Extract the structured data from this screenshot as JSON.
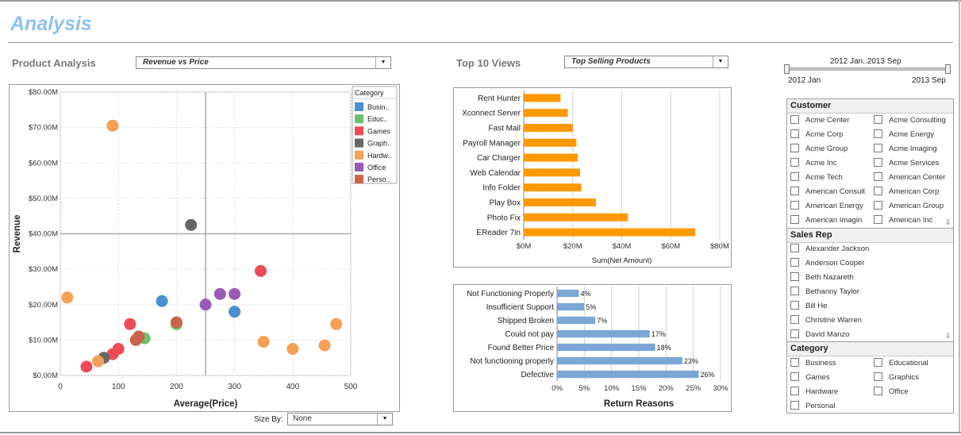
{
  "page_title": "Analysis",
  "product_analysis": {
    "title": "Product Analysis",
    "combo_value": "Revenue vs Price",
    "size_by_label": "Size By:",
    "size_by_value": "None"
  },
  "top10": {
    "title": "Top 10 Views",
    "combo_value": "Top Selling Products"
  },
  "slider": {
    "range_label": "2012 Jan..2013 Sep",
    "min_label": "2012 Jan",
    "max_label": "2013 Sep"
  },
  "filters": {
    "customer": {
      "title": "Customer",
      "items": [
        "Acme Center",
        "Acme Consulting",
        "Acme Corp",
        "Acme Energy",
        "Acme Group",
        "Acme Imaging",
        "Acme Inc",
        "Acme Services",
        "Acme Tech",
        "American Center",
        "American Consult",
        "American Corp",
        "American Energy",
        "American Group",
        "American Imagin",
        "American Inc"
      ]
    },
    "sales_rep": {
      "title": "Sales Rep",
      "items": [
        "Alexander Jackson",
        "Anderson Cooper",
        "Beth Nazareth",
        "Bethanny Taylor",
        "Bill He",
        "Christine Warren",
        "David Manzo"
      ]
    },
    "category": {
      "title": "Category",
      "items": [
        "Business",
        "Educational",
        "Games",
        "Graphics",
        "Hardware",
        "Office",
        "Personal"
      ]
    }
  },
  "chart_data": [
    {
      "type": "scatter",
      "title": "",
      "xlabel": "Average(Price)",
      "ylabel": "Revenue",
      "xlim": [
        0,
        500
      ],
      "ylim": [
        0,
        80
      ],
      "x_ticks": [
        "0",
        "100",
        "200",
        "300",
        "400",
        "500"
      ],
      "y_ticks": [
        "$0.00M",
        "$10.00M",
        "$20.00M",
        "$30.00M",
        "$40.00M",
        "$50.00M",
        "$60.00M",
        "$70.00M",
        "$80.00M"
      ],
      "legend_title": "Category",
      "legend": [
        {
          "name": "Busin..",
          "color": "#4a8fd0"
        },
        {
          "name": "Educ..",
          "color": "#6cc06c"
        },
        {
          "name": "Games",
          "color": "#ee4b57"
        },
        {
          "name": "Graph..",
          "color": "#666666"
        },
        {
          "name": "Hardw..",
          "color": "#f5a055"
        },
        {
          "name": "Office",
          "color": "#9a5bb8"
        },
        {
          "name": "Perso..",
          "color": "#c9654b"
        }
      ],
      "points": [
        {
          "x": 90,
          "y": 70.5,
          "c": 4
        },
        {
          "x": 225,
          "y": 42.5,
          "c": 3
        },
        {
          "x": 12,
          "y": 22,
          "c": 4
        },
        {
          "x": 345,
          "y": 29.5,
          "c": 2
        },
        {
          "x": 175,
          "y": 21,
          "c": 0
        },
        {
          "x": 250,
          "y": 20,
          "c": 5
        },
        {
          "x": 275,
          "y": 23,
          "c": 5
        },
        {
          "x": 300,
          "y": 23,
          "c": 5
        },
        {
          "x": 300,
          "y": 18,
          "c": 0
        },
        {
          "x": 475,
          "y": 14.5,
          "c": 4
        },
        {
          "x": 350,
          "y": 9.5,
          "c": 4
        },
        {
          "x": 400,
          "y": 7.5,
          "c": 4
        },
        {
          "x": 455,
          "y": 8.5,
          "c": 4
        },
        {
          "x": 120,
          "y": 14.5,
          "c": 2
        },
        {
          "x": 200,
          "y": 14.5,
          "c": 1
        },
        {
          "x": 200,
          "y": 15,
          "c": 6
        },
        {
          "x": 145,
          "y": 10.5,
          "c": 1
        },
        {
          "x": 130,
          "y": 10,
          "c": 6
        },
        {
          "x": 100,
          "y": 7.5,
          "c": 2
        },
        {
          "x": 90,
          "y": 6,
          "c": 2
        },
        {
          "x": 75,
          "y": 5,
          "c": 3
        },
        {
          "x": 65,
          "y": 4,
          "c": 4
        },
        {
          "x": 45,
          "y": 2.5,
          "c": 2
        },
        {
          "x": 135,
          "y": 11,
          "c": 6
        }
      ]
    },
    {
      "type": "bar",
      "orientation": "horizontal",
      "title": "",
      "xlabel": "Sum(Net Amount)",
      "categories": [
        "Rent Hunter",
        "Xconnect Server",
        "Fast Mail",
        "Payroll Manager",
        "Car Charger",
        "Web Calendar",
        "Info Folder",
        "Play Box",
        "Photo Fix",
        "EReader 7in"
      ],
      "values": [
        15,
        18,
        20,
        21.5,
        22,
        23,
        23.5,
        29.5,
        42.5,
        70
      ],
      "xlim": [
        0,
        80
      ],
      "x_ticks": [
        "$0M",
        "$20M",
        "$40M",
        "$60M",
        "$80M"
      ],
      "color": "#ff9900"
    },
    {
      "type": "bar",
      "orientation": "horizontal",
      "title": "",
      "xlabel": "Return Reasons",
      "categories": [
        "Not Functioning Properly",
        "Insufficient Support",
        "Shipped Broken",
        "Could not pay",
        "Found Better Price",
        "Not functioning properly",
        "Defective"
      ],
      "values": [
        4,
        5,
        7,
        17,
        18,
        23,
        26
      ],
      "data_labels": [
        "4%",
        "5%",
        "7%",
        "17%",
        "18%",
        "23%",
        "26%"
      ],
      "xlim": [
        0,
        30
      ],
      "x_ticks": [
        "0%",
        "5%",
        "10%",
        "15%",
        "20%",
        "25%",
        "30%"
      ],
      "color": "#7ba7d7"
    }
  ]
}
